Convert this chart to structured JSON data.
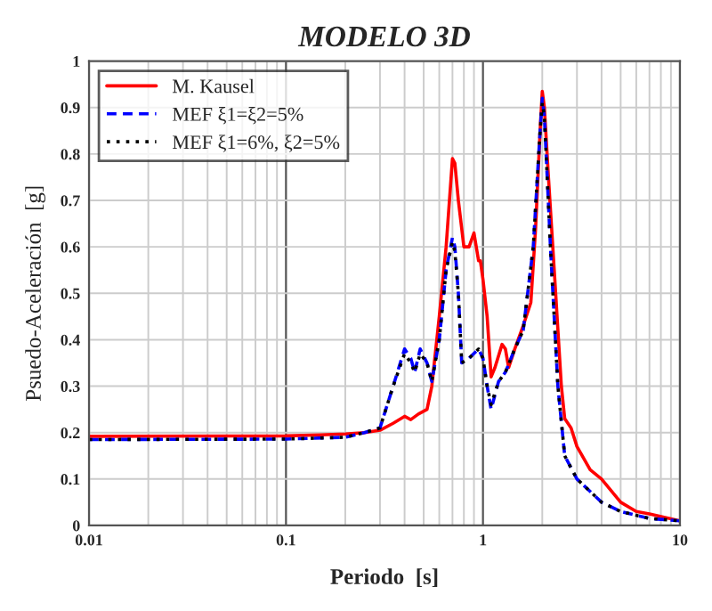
{
  "chart_data": {
    "type": "line",
    "title": "MODELO 3D",
    "xlabel": "Periodo  [s]",
    "ylabel": "Psuedo-Aceleración  [g]",
    "log": "x",
    "grid": true,
    "legend": "top left",
    "xlim": [
      0.01,
      10
    ],
    "xticks": [
      0.01,
      0.1,
      1,
      10
    ],
    "ylim": [
      0,
      1
    ],
    "yticks": [
      0,
      0.1,
      0.2,
      0.3,
      0.4,
      0.5,
      0.6,
      0.7,
      0.8,
      0.9,
      1
    ],
    "series": [
      {
        "name": "M. Kausel",
        "color": "#ff0000",
        "line_style": "solid",
        "x": [
          0.01,
          0.1,
          0.15,
          0.2,
          0.25,
          0.3,
          0.35,
          0.4,
          0.43,
          0.47,
          0.52,
          0.55,
          0.6,
          0.65,
          0.7,
          0.72,
          0.75,
          0.8,
          0.85,
          0.9,
          0.95,
          0.97,
          1.0,
          1.05,
          1.1,
          1.15,
          1.25,
          1.3,
          1.35,
          1.45,
          1.6,
          1.75,
          1.85,
          1.95,
          2.0,
          2.05,
          2.15,
          2.3,
          2.5,
          2.6,
          2.8,
          3.0,
          3.5,
          4.0,
          5,
          6,
          7,
          10
        ],
        "values": [
          0.192,
          0.193,
          0.195,
          0.197,
          0.2,
          0.205,
          0.22,
          0.235,
          0.228,
          0.24,
          0.25,
          0.3,
          0.45,
          0.6,
          0.79,
          0.78,
          0.7,
          0.6,
          0.6,
          0.63,
          0.57,
          0.57,
          0.53,
          0.45,
          0.32,
          0.34,
          0.39,
          0.38,
          0.34,
          0.38,
          0.43,
          0.48,
          0.64,
          0.85,
          0.935,
          0.9,
          0.75,
          0.55,
          0.3,
          0.23,
          0.21,
          0.17,
          0.12,
          0.1,
          0.05,
          0.03,
          0.025,
          0.01
        ]
      },
      {
        "name": "MEF ξ1=ξ2=5%",
        "color": "#0000ff",
        "line_style": "dashed",
        "x": [
          0.01,
          0.1,
          0.2,
          0.25,
          0.3,
          0.35,
          0.4,
          0.43,
          0.45,
          0.48,
          0.52,
          0.55,
          0.6,
          0.65,
          0.7,
          0.72,
          0.75,
          0.78,
          0.85,
          0.95,
          1.0,
          1.05,
          1.1,
          1.2,
          1.3,
          1.45,
          1.6,
          1.8,
          1.95,
          2.0,
          2.05,
          2.2,
          2.4,
          2.6,
          3,
          4,
          5,
          7,
          10
        ],
        "values": [
          0.185,
          0.186,
          0.19,
          0.2,
          0.21,
          0.3,
          0.38,
          0.36,
          0.33,
          0.38,
          0.35,
          0.31,
          0.4,
          0.55,
          0.62,
          0.6,
          0.5,
          0.35,
          0.36,
          0.38,
          0.36,
          0.3,
          0.25,
          0.31,
          0.33,
          0.38,
          0.42,
          0.6,
          0.85,
          0.92,
          0.88,
          0.6,
          0.3,
          0.15,
          0.1,
          0.05,
          0.03,
          0.015,
          0.01
        ]
      },
      {
        "name": "MEF ξ1=6%, ξ2=5%",
        "color": "#000000",
        "line_style": "dotted",
        "x": [
          0.01,
          0.1,
          0.2,
          0.25,
          0.3,
          0.35,
          0.4,
          0.43,
          0.45,
          0.48,
          0.52,
          0.55,
          0.6,
          0.65,
          0.7,
          0.72,
          0.75,
          0.78,
          0.85,
          0.95,
          1.0,
          1.05,
          1.1,
          1.2,
          1.3,
          1.45,
          1.6,
          1.8,
          1.95,
          2.0,
          2.05,
          2.2,
          2.4,
          2.6,
          3,
          4,
          5,
          7,
          10
        ],
        "values": [
          0.185,
          0.186,
          0.19,
          0.2,
          0.21,
          0.3,
          0.37,
          0.35,
          0.33,
          0.37,
          0.35,
          0.31,
          0.4,
          0.55,
          0.61,
          0.59,
          0.5,
          0.35,
          0.36,
          0.38,
          0.36,
          0.3,
          0.26,
          0.31,
          0.33,
          0.38,
          0.42,
          0.6,
          0.85,
          0.91,
          0.88,
          0.6,
          0.3,
          0.15,
          0.1,
          0.05,
          0.03,
          0.015,
          0.01
        ]
      }
    ]
  }
}
